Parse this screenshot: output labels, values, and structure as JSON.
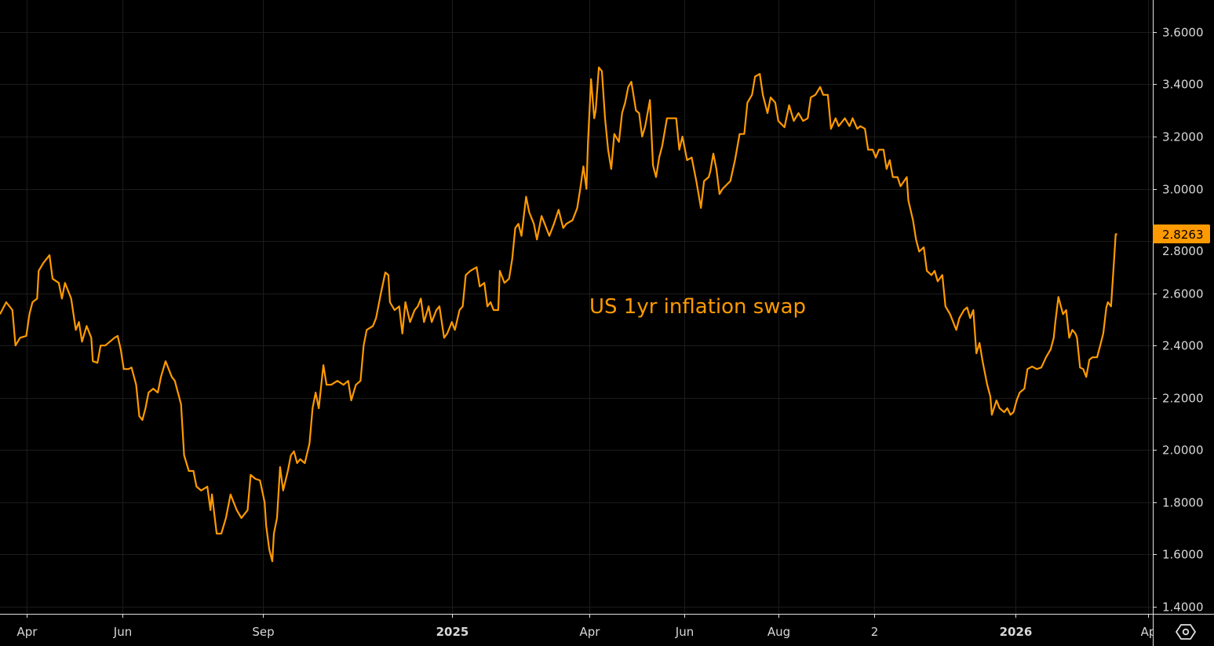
{
  "chart_data": {
    "type": "line",
    "title": "",
    "annotation": "US 1yr inflation swap",
    "x_unit": "days since 2024-03-15",
    "xlim": [
      0,
      745
    ],
    "ylim": [
      1.373,
      3.723
    ],
    "grid": true,
    "line_color": "#ff9a00",
    "last_value_label": "2.8263",
    "y_ticks": [
      "1.4000",
      "1.6000",
      "1.8000",
      "2.0000",
      "2.2000",
      "2.4000",
      "2.6000",
      "2.8000",
      "3.0000",
      "3.2000",
      "3.4000",
      "3.6000"
    ],
    "x_ticks": [
      {
        "label": "Apr",
        "day": 17,
        "bold": false
      },
      {
        "label": "Jun",
        "day": 79,
        "bold": false
      },
      {
        "label": "Sep",
        "day": 170,
        "bold": false
      },
      {
        "label": "2025",
        "day": 292,
        "bold": true
      },
      {
        "label": "Apr",
        "day": 381,
        "bold": false
      },
      {
        "label": "Jun",
        "day": 442,
        "bold": false
      },
      {
        "label": "Aug",
        "day": 503,
        "bold": false
      },
      {
        "label": "2",
        "day": 565,
        "bold": false
      },
      {
        "label": "2026",
        "day": 656,
        "bold": true
      },
      {
        "label": "Ap",
        "day": 742,
        "bold": false
      }
    ],
    "series": [
      {
        "name": "US 1yr inflation swap",
        "points": [
          [
            0,
            2.52
          ],
          [
            4,
            2.566
          ],
          [
            8,
            2.536
          ],
          [
            10,
            2.4
          ],
          [
            13,
            2.43
          ],
          [
            17,
            2.437
          ],
          [
            19,
            2.52
          ],
          [
            21,
            2.566
          ],
          [
            24,
            2.58
          ],
          [
            25,
            2.686
          ],
          [
            28,
            2.716
          ],
          [
            32,
            2.746
          ],
          [
            34,
            2.656
          ],
          [
            38,
            2.64
          ],
          [
            40,
            2.58
          ],
          [
            42,
            2.64
          ],
          [
            46,
            2.58
          ],
          [
            49,
            2.46
          ],
          [
            51,
            2.49
          ],
          [
            53,
            2.415
          ],
          [
            56,
            2.475
          ],
          [
            59,
            2.43
          ],
          [
            60,
            2.34
          ],
          [
            63,
            2.334
          ],
          [
            65,
            2.4
          ],
          [
            68,
            2.4
          ],
          [
            71,
            2.415
          ],
          [
            74,
            2.43
          ],
          [
            76,
            2.437
          ],
          [
            78,
            2.386
          ],
          [
            80,
            2.31
          ],
          [
            83,
            2.31
          ],
          [
            85,
            2.316
          ],
          [
            88,
            2.25
          ],
          [
            90,
            2.13
          ],
          [
            92,
            2.115
          ],
          [
            94,
            2.16
          ],
          [
            96,
            2.22
          ],
          [
            99,
            2.235
          ],
          [
            102,
            2.22
          ],
          [
            104,
            2.28
          ],
          [
            107,
            2.34
          ],
          [
            111,
            2.28
          ],
          [
            113,
            2.265
          ],
          [
            117,
            2.175
          ],
          [
            119,
            1.98
          ],
          [
            122,
            1.92
          ],
          [
            125,
            1.92
          ],
          [
            127,
            1.86
          ],
          [
            130,
            1.845
          ],
          [
            134,
            1.86
          ],
          [
            136,
            1.77
          ],
          [
            137,
            1.83
          ],
          [
            140,
            1.68
          ],
          [
            143,
            1.68
          ],
          [
            146,
            1.74
          ],
          [
            149,
            1.83
          ],
          [
            151,
            1.8
          ],
          [
            153,
            1.77
          ],
          [
            156,
            1.74
          ],
          [
            160,
            1.77
          ],
          [
            162,
            1.905
          ],
          [
            165,
            1.89
          ],
          [
            168,
            1.884
          ],
          [
            171,
            1.8
          ],
          [
            172,
            1.71
          ],
          [
            174,
            1.62
          ],
          [
            176,
            1.574
          ],
          [
            177,
            1.68
          ],
          [
            179,
            1.74
          ],
          [
            181,
            1.935
          ],
          [
            183,
            1.845
          ],
          [
            186,
            1.92
          ],
          [
            188,
            1.98
          ],
          [
            190,
            1.995
          ],
          [
            192,
            1.95
          ],
          [
            194,
            1.965
          ],
          [
            197,
            1.95
          ],
          [
            200,
            2.025
          ],
          [
            202,
            2.16
          ],
          [
            204,
            2.22
          ],
          [
            206,
            2.16
          ],
          [
            209,
            2.325
          ],
          [
            211,
            2.25
          ],
          [
            214,
            2.25
          ],
          [
            218,
            2.265
          ],
          [
            222,
            2.25
          ],
          [
            225,
            2.265
          ],
          [
            227,
            2.19
          ],
          [
            230,
            2.25
          ],
          [
            233,
            2.265
          ],
          [
            235,
            2.4
          ],
          [
            237,
            2.46
          ],
          [
            241,
            2.475
          ],
          [
            243,
            2.505
          ],
          [
            246,
            2.596
          ],
          [
            249,
            2.68
          ],
          [
            251,
            2.67
          ],
          [
            252,
            2.566
          ],
          [
            255,
            2.536
          ],
          [
            258,
            2.55
          ],
          [
            260,
            2.446
          ],
          [
            262,
            2.566
          ],
          [
            265,
            2.49
          ],
          [
            268,
            2.536
          ],
          [
            270,
            2.55
          ],
          [
            272,
            2.58
          ],
          [
            274,
            2.49
          ],
          [
            277,
            2.55
          ],
          [
            279,
            2.49
          ],
          [
            282,
            2.536
          ],
          [
            284,
            2.55
          ],
          [
            287,
            2.43
          ],
          [
            289,
            2.446
          ],
          [
            292,
            2.49
          ],
          [
            294,
            2.46
          ],
          [
            297,
            2.536
          ],
          [
            299,
            2.55
          ],
          [
            301,
            2.67
          ],
          [
            304,
            2.686
          ],
          [
            308,
            2.7
          ],
          [
            310,
            2.626
          ],
          [
            313,
            2.64
          ],
          [
            315,
            2.55
          ],
          [
            317,
            2.566
          ],
          [
            319,
            2.536
          ],
          [
            322,
            2.536
          ],
          [
            323,
            2.686
          ],
          [
            326,
            2.64
          ],
          [
            329,
            2.656
          ],
          [
            331,
            2.731
          ],
          [
            333,
            2.85
          ],
          [
            335,
            2.866
          ],
          [
            337,
            2.82
          ],
          [
            340,
            2.97
          ],
          [
            342,
            2.91
          ],
          [
            345,
            2.866
          ],
          [
            347,
            2.806
          ],
          [
            350,
            2.896
          ],
          [
            352,
            2.866
          ],
          [
            355,
            2.82
          ],
          [
            358,
            2.866
          ],
          [
            361,
            2.92
          ],
          [
            364,
            2.85
          ],
          [
            366,
            2.866
          ],
          [
            370,
            2.88
          ],
          [
            373,
            2.926
          ],
          [
            375,
            3.0
          ],
          [
            377,
            3.086
          ],
          [
            379,
            3.0
          ],
          [
            380,
            3.18
          ],
          [
            382,
            3.42
          ],
          [
            384,
            3.27
          ],
          [
            385,
            3.3
          ],
          [
            387,
            3.465
          ],
          [
            389,
            3.45
          ],
          [
            391,
            3.27
          ],
          [
            393,
            3.15
          ],
          [
            395,
            3.076
          ],
          [
            397,
            3.21
          ],
          [
            400,
            3.18
          ],
          [
            402,
            3.29
          ],
          [
            404,
            3.33
          ],
          [
            406,
            3.39
          ],
          [
            408,
            3.41
          ],
          [
            411,
            3.3
          ],
          [
            413,
            3.29
          ],
          [
            415,
            3.2
          ],
          [
            417,
            3.24
          ],
          [
            420,
            3.34
          ],
          [
            422,
            3.09
          ],
          [
            424,
            3.045
          ],
          [
            426,
            3.12
          ],
          [
            428,
            3.165
          ],
          [
            431,
            3.27
          ],
          [
            433,
            3.27
          ],
          [
            437,
            3.27
          ],
          [
            439,
            3.15
          ],
          [
            441,
            3.2
          ],
          [
            444,
            3.11
          ],
          [
            447,
            3.12
          ],
          [
            450,
            3.03
          ],
          [
            453,
            2.927
          ],
          [
            455,
            3.03
          ],
          [
            458,
            3.045
          ],
          [
            459,
            3.066
          ],
          [
            461,
            3.135
          ],
          [
            463,
            3.076
          ],
          [
            465,
            2.98
          ],
          [
            467,
            3.0
          ],
          [
            472,
            3.03
          ],
          [
            475,
            3.11
          ],
          [
            478,
            3.21
          ],
          [
            481,
            3.21
          ],
          [
            483,
            3.33
          ],
          [
            486,
            3.36
          ],
          [
            488,
            3.43
          ],
          [
            491,
            3.44
          ],
          [
            493,
            3.36
          ],
          [
            496,
            3.29
          ],
          [
            498,
            3.35
          ],
          [
            501,
            3.33
          ],
          [
            503,
            3.26
          ],
          [
            507,
            3.236
          ],
          [
            510,
            3.32
          ],
          [
            513,
            3.26
          ],
          [
            516,
            3.29
          ],
          [
            519,
            3.26
          ],
          [
            522,
            3.27
          ],
          [
            524,
            3.35
          ],
          [
            527,
            3.36
          ],
          [
            530,
            3.39
          ],
          [
            532,
            3.36
          ],
          [
            535,
            3.36
          ],
          [
            537,
            3.23
          ],
          [
            540,
            3.27
          ],
          [
            542,
            3.24
          ],
          [
            546,
            3.27
          ],
          [
            549,
            3.24
          ],
          [
            551,
            3.27
          ],
          [
            554,
            3.23
          ],
          [
            556,
            3.24
          ],
          [
            559,
            3.23
          ],
          [
            561,
            3.15
          ],
          [
            564,
            3.15
          ],
          [
            566,
            3.12
          ],
          [
            568,
            3.15
          ],
          [
            571,
            3.15
          ],
          [
            573,
            3.076
          ],
          [
            575,
            3.11
          ],
          [
            577,
            3.045
          ],
          [
            580,
            3.045
          ],
          [
            582,
            3.01
          ],
          [
            586,
            3.045
          ],
          [
            587,
            2.956
          ],
          [
            590,
            2.88
          ],
          [
            592,
            2.806
          ],
          [
            594,
            2.76
          ],
          [
            597,
            2.776
          ],
          [
            599,
            2.686
          ],
          [
            602,
            2.67
          ],
          [
            604,
            2.686
          ],
          [
            606,
            2.646
          ],
          [
            609,
            2.67
          ],
          [
            611,
            2.55
          ],
          [
            614,
            2.52
          ],
          [
            618,
            2.46
          ],
          [
            620,
            2.505
          ],
          [
            623,
            2.536
          ],
          [
            625,
            2.546
          ],
          [
            627,
            2.505
          ],
          [
            629,
            2.536
          ],
          [
            631,
            2.37
          ],
          [
            633,
            2.41
          ],
          [
            635,
            2.34
          ],
          [
            638,
            2.25
          ],
          [
            640,
            2.205
          ],
          [
            641,
            2.135
          ],
          [
            644,
            2.19
          ],
          [
            646,
            2.16
          ],
          [
            649,
            2.145
          ],
          [
            651,
            2.16
          ],
          [
            653,
            2.135
          ],
          [
            655,
            2.145
          ],
          [
            657,
            2.19
          ],
          [
            659,
            2.22
          ],
          [
            662,
            2.235
          ],
          [
            664,
            2.31
          ],
          [
            667,
            2.32
          ],
          [
            670,
            2.31
          ],
          [
            673,
            2.316
          ],
          [
            676,
            2.355
          ],
          [
            679,
            2.386
          ],
          [
            681,
            2.43
          ],
          [
            682,
            2.49
          ],
          [
            684,
            2.586
          ],
          [
            687,
            2.52
          ],
          [
            689,
            2.536
          ],
          [
            691,
            2.43
          ],
          [
            693,
            2.46
          ],
          [
            695,
            2.446
          ],
          [
            696,
            2.43
          ],
          [
            698,
            2.316
          ],
          [
            700,
            2.31
          ],
          [
            702,
            2.28
          ],
          [
            704,
            2.346
          ],
          [
            706,
            2.355
          ],
          [
            709,
            2.355
          ],
          [
            711,
            2.4
          ],
          [
            713,
            2.446
          ],
          [
            715,
            2.546
          ],
          [
            716,
            2.566
          ],
          [
            718,
            2.55
          ],
          [
            720,
            2.73
          ],
          [
            721,
            2.826
          ],
          [
            722,
            2.8263
          ]
        ]
      }
    ]
  },
  "ui": {
    "settings_icon": "hexagon-gear-icon"
  }
}
